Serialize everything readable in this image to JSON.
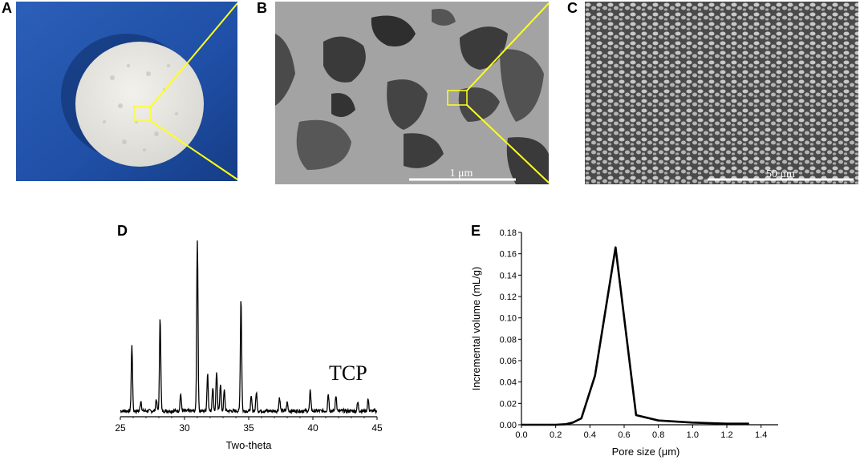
{
  "panels": {
    "a": {
      "letter": "A"
    },
    "b": {
      "letter": "B",
      "scale_bar": "1 μm"
    },
    "c": {
      "letter": "C",
      "scale_bar": "50 μm"
    },
    "d": {
      "letter": "D"
    },
    "e": {
      "letter": "E"
    }
  },
  "colors": {
    "highlight": "#ffff1e",
    "blue_bg": "#1f4fa6",
    "sem_gray": "#9a9a9a"
  },
  "chart_data": [
    {
      "type": "line",
      "panel": "D",
      "xlabel": "Two-theta",
      "ylabel": "",
      "series_label": "TCP",
      "xlim": [
        25,
        45
      ],
      "xticks": [
        25,
        30,
        35,
        40,
        45
      ],
      "y_axis_shown": false,
      "peaks": [
        {
          "x": 25.9,
          "height": 0.38
        },
        {
          "x": 26.6,
          "height": 0.06
        },
        {
          "x": 27.8,
          "height": 0.07
        },
        {
          "x": 28.1,
          "height": 0.55
        },
        {
          "x": 29.7,
          "height": 0.1
        },
        {
          "x": 31.0,
          "height": 1.0
        },
        {
          "x": 31.8,
          "height": 0.22
        },
        {
          "x": 32.2,
          "height": 0.14
        },
        {
          "x": 32.5,
          "height": 0.23
        },
        {
          "x": 32.8,
          "height": 0.16
        },
        {
          "x": 33.1,
          "height": 0.12
        },
        {
          "x": 34.4,
          "height": 0.66
        },
        {
          "x": 35.2,
          "height": 0.08
        },
        {
          "x": 35.6,
          "height": 0.11
        },
        {
          "x": 37.4,
          "height": 0.08
        },
        {
          "x": 38.0,
          "height": 0.05
        },
        {
          "x": 39.8,
          "height": 0.12
        },
        {
          "x": 41.2,
          "height": 0.1
        },
        {
          "x": 41.8,
          "height": 0.09
        },
        {
          "x": 43.5,
          "height": 0.05
        },
        {
          "x": 44.3,
          "height": 0.07
        }
      ]
    },
    {
      "type": "line",
      "panel": "E",
      "xlabel": "Pore size (μm)",
      "ylabel": "Incremental volume (mL/g)",
      "xlim": [
        0.0,
        1.5
      ],
      "ylim": [
        0.0,
        0.18
      ],
      "xticks": [
        "0.0",
        "0.2",
        "0.4",
        "0.6",
        "0.8",
        "1.0",
        "1.2",
        "1.4"
      ],
      "yticks": [
        "0.00",
        "0.02",
        "0.04",
        "0.06",
        "0.08",
        "0.10",
        "0.12",
        "0.14",
        "0.16",
        "0.18"
      ],
      "series": [
        {
          "x": [
            0.0,
            0.2,
            0.26,
            0.3,
            0.35,
            0.43,
            0.55,
            0.67,
            0.8,
            1.0,
            1.2,
            1.33
          ],
          "y": [
            0.0,
            0.0,
            0.0005,
            0.002,
            0.006,
            0.046,
            0.166,
            0.009,
            0.004,
            0.002,
            0.001,
            0.001
          ]
        }
      ]
    }
  ]
}
